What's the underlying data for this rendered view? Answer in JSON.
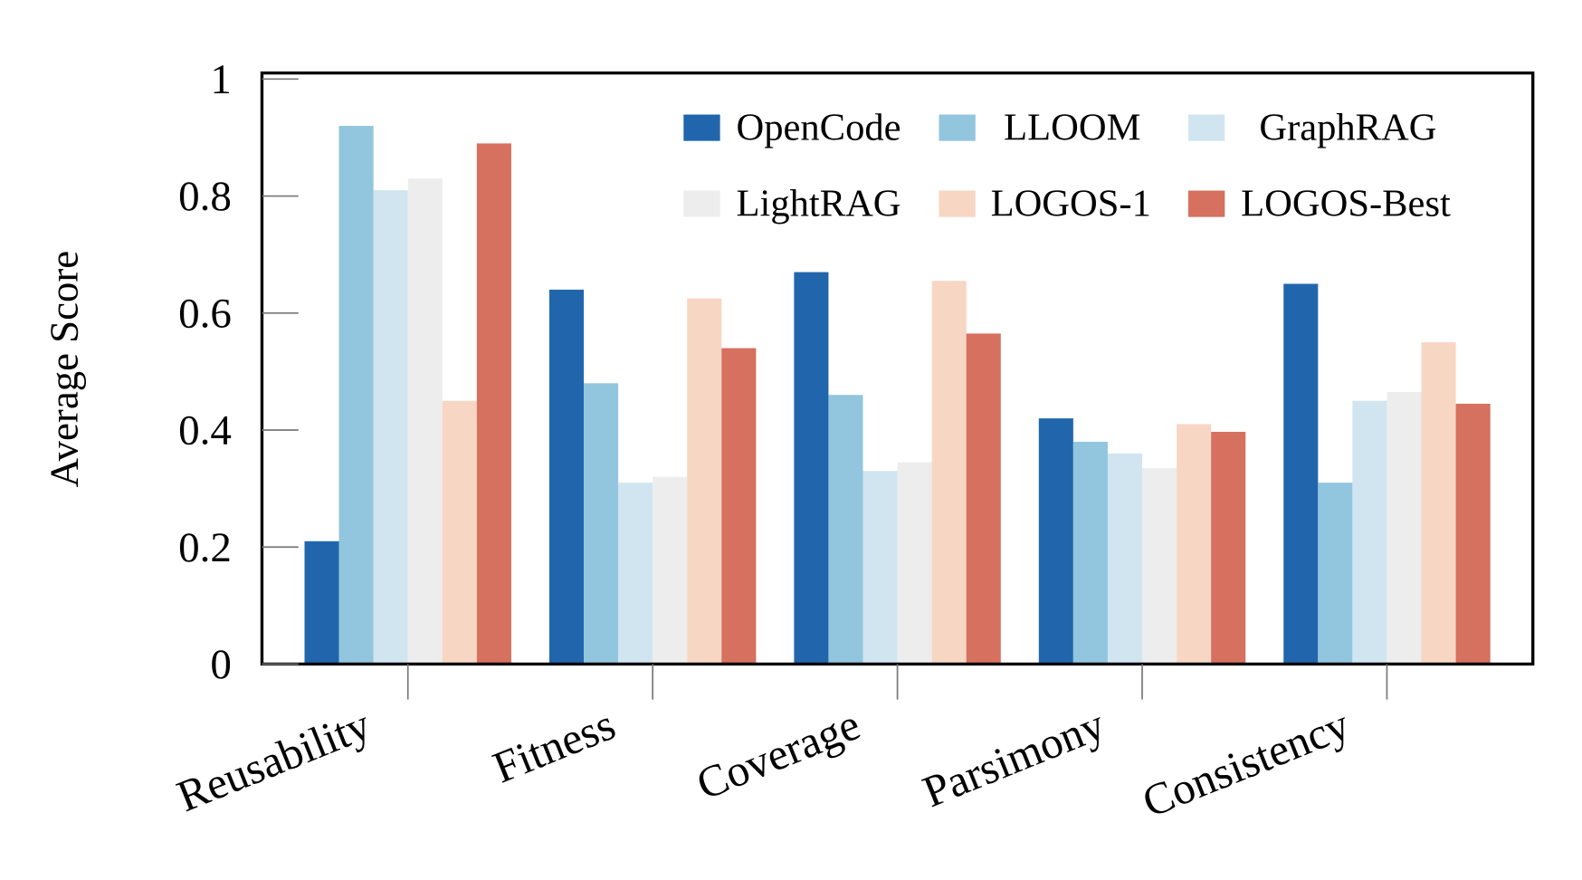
{
  "chart_data": {
    "type": "bar",
    "title": "",
    "xlabel": "",
    "ylabel": "Average Score",
    "ylim": [
      0,
      1
    ],
    "yticks": [
      0,
      0.2,
      0.4,
      0.6,
      0.8,
      1
    ],
    "ytick_labels": [
      "0",
      "0.2",
      "0.4",
      "0.6",
      "0.8",
      "1"
    ],
    "grid": false,
    "legend_position": "top-right",
    "categories": [
      "Reusability",
      "Fitness",
      "Coverage",
      "Parsimony",
      "Consistency"
    ],
    "series": [
      {
        "name": "OpenCode",
        "color": "#2166ac",
        "values": [
          0.21,
          0.64,
          0.67,
          0.42,
          0.65
        ]
      },
      {
        "name": "LLOOM",
        "color": "#92c5de",
        "values": [
          0.92,
          0.48,
          0.46,
          0.38,
          0.31
        ]
      },
      {
        "name": "GraphRAG",
        "color": "#d1e5f0",
        "values": [
          0.81,
          0.31,
          0.33,
          0.36,
          0.45
        ]
      },
      {
        "name": "LightRAG",
        "color": "#ededed",
        "values": [
          0.83,
          0.32,
          0.345,
          0.335,
          0.465
        ]
      },
      {
        "name": "LOGOS-1",
        "color": "#f7d6c3",
        "values": [
          0.45,
          0.625,
          0.655,
          0.41,
          0.55
        ]
      },
      {
        "name": "LOGOS-Best",
        "color": "#d6705f",
        "values": [
          0.89,
          0.54,
          0.565,
          0.397,
          0.445
        ]
      }
    ]
  }
}
